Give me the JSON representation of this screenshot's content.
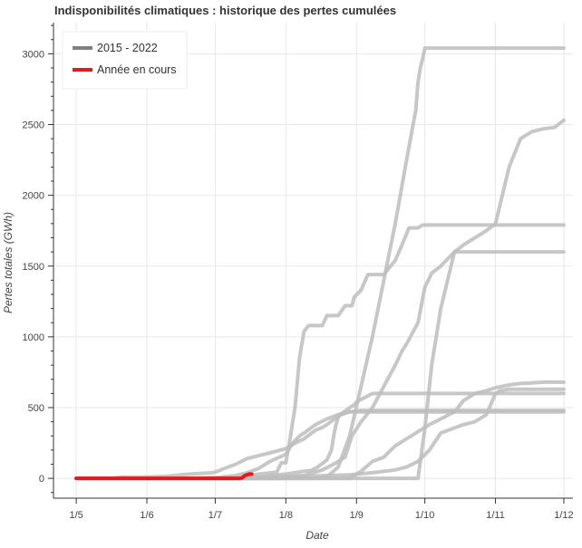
{
  "chart_data": {
    "type": "line",
    "title": "Indisponibilités climatiques : historique des pertes cumulées",
    "xlabel": "Date",
    "ylabel": "Pertes totales (GWh)",
    "x_tick_labels": [
      "1/5",
      "1/6",
      "1/7",
      "1/8",
      "1/9",
      "1/10",
      "1/11",
      "1/12"
    ],
    "x_tick_days": [
      0,
      31,
      61,
      92,
      123,
      153,
      184,
      214
    ],
    "xlim": [
      -10,
      218
    ],
    "ylim": [
      -140,
      3220
    ],
    "y_ticks": [
      0,
      500,
      1000,
      1500,
      2000,
      2500,
      3000
    ],
    "grid": true,
    "legend": {
      "position": "top-left",
      "entries": [
        {
          "label": "2015 - 2022",
          "color": "#808080"
        },
        {
          "label": "Année en cours",
          "color": "#e31a1c"
        }
      ]
    },
    "history_color": "#bdbdbd",
    "current_color": "#e31a1c",
    "series": [
      {
        "group": "2015 - 2022",
        "x": [
          0,
          70,
          73,
          80,
          86,
          88,
          90,
          92,
          94,
          96,
          98,
          100,
          102,
          105,
          108,
          110,
          115,
          118,
          121,
          122,
          125,
          128,
          133,
          135,
          137,
          140,
          143,
          146,
          150,
          152,
          154,
          214
        ],
        "y": [
          0,
          0,
          10,
          30,
          40,
          45,
          110,
          110,
          300,
          500,
          850,
          1040,
          1080,
          1080,
          1080,
          1150,
          1150,
          1220,
          1220,
          1280,
          1330,
          1440,
          1440,
          1440,
          1480,
          1540,
          1650,
          1770,
          1770,
          1790,
          1790,
          1790
        ]
      },
      {
        "group": "2015 - 2022",
        "x": [
          0,
          96,
          106,
          110,
          115,
          120,
          125,
          130,
          135,
          140,
          145,
          149,
          150,
          151,
          152,
          153,
          214
        ],
        "y": [
          0,
          0,
          0,
          10,
          80,
          300,
          650,
          1000,
          1400,
          1800,
          2250,
          2600,
          2800,
          2900,
          2960,
          3040,
          3040
        ]
      },
      {
        "group": "2015 - 2022",
        "x": [
          0,
          16,
          20,
          24,
          28,
          31,
          40,
          46,
          50,
          60,
          62,
          65,
          70,
          75,
          80,
          85,
          92,
          95,
          100,
          105,
          108,
          110,
          115,
          120,
          122,
          123,
          130,
          214
        ],
        "y": [
          0,
          0,
          10,
          10,
          10,
          10,
          15,
          25,
          30,
          40,
          50,
          70,
          100,
          140,
          160,
          180,
          210,
          240,
          280,
          340,
          360,
          380,
          440,
          500,
          520,
          540,
          600,
          600
        ]
      },
      {
        "group": "2015 - 2022",
        "x": [
          0,
          62,
          64,
          70,
          75,
          80,
          85,
          92,
          95,
          98,
          100,
          105,
          110,
          115,
          120,
          122,
          125,
          214
        ],
        "y": [
          0,
          0,
          10,
          20,
          40,
          70,
          120,
          170,
          250,
          300,
          320,
          380,
          420,
          450,
          470,
          470,
          470,
          470
        ]
      },
      {
        "group": "2015 - 2022",
        "x": [
          0,
          80,
          86,
          92,
          96,
          100,
          103,
          106,
          110,
          112,
          113,
          114,
          115,
          116,
          120,
          125,
          127,
          214
        ],
        "y": [
          0,
          0,
          20,
          30,
          40,
          50,
          55,
          80,
          130,
          200,
          300,
          380,
          430,
          450,
          470,
          480,
          480,
          480
        ]
      },
      {
        "group": "2015 - 2022",
        "x": [
          0,
          86,
          100,
          108,
          113,
          118,
          121,
          125,
          130,
          135,
          140,
          143,
          145,
          150,
          153,
          156,
          160,
          166,
          170,
          172,
          176,
          180,
          184,
          190,
          195,
          200,
          205,
          208,
          214
        ],
        "y": [
          0,
          0,
          20,
          60,
          100,
          150,
          300,
          400,
          500,
          650,
          800,
          900,
          950,
          1100,
          1350,
          1450,
          1500,
          1600,
          1600,
          1600,
          1600,
          1600,
          1600,
          1600,
          1600,
          1600,
          1600,
          1600,
          1600
        ]
      },
      {
        "group": "2015 - 2022",
        "x": [
          0,
          120,
          125,
          130,
          135,
          140,
          145,
          150,
          155,
          160,
          166,
          170,
          175,
          180,
          184,
          190,
          195,
          200,
          205,
          210,
          214
        ],
        "y": [
          0,
          0,
          50,
          120,
          150,
          230,
          280,
          330,
          380,
          420,
          470,
          550,
          600,
          620,
          640,
          660,
          670,
          675,
          680,
          680,
          680
        ]
      },
      {
        "group": "2015 - 2022",
        "x": [
          0,
          50,
          60,
          70,
          80,
          90,
          100,
          110,
          120,
          130,
          140,
          145,
          150,
          155,
          160,
          165,
          170,
          175,
          180,
          184,
          186,
          190,
          214
        ],
        "y": [
          0,
          0,
          5,
          8,
          10,
          12,
          15,
          20,
          25,
          40,
          60,
          80,
          120,
          200,
          320,
          350,
          380,
          400,
          450,
          600,
          620,
          630,
          630
        ]
      },
      {
        "group": "2015 - 2022",
        "x": [
          0,
          150,
          153,
          156,
          160,
          166,
          170,
          175,
          180,
          184,
          187,
          190,
          195,
          200,
          205,
          210,
          214
        ],
        "y": [
          0,
          0,
          350,
          800,
          1200,
          1600,
          1650,
          1700,
          1750,
          1800,
          2000,
          2200,
          2400,
          2450,
          2470,
          2480,
          2530
        ]
      },
      {
        "group": "Année en cours",
        "x": [
          0,
          72,
          73,
          74,
          75,
          76,
          77
        ],
        "y": [
          0,
          0,
          5,
          20,
          25,
          30,
          30
        ]
      }
    ]
  }
}
